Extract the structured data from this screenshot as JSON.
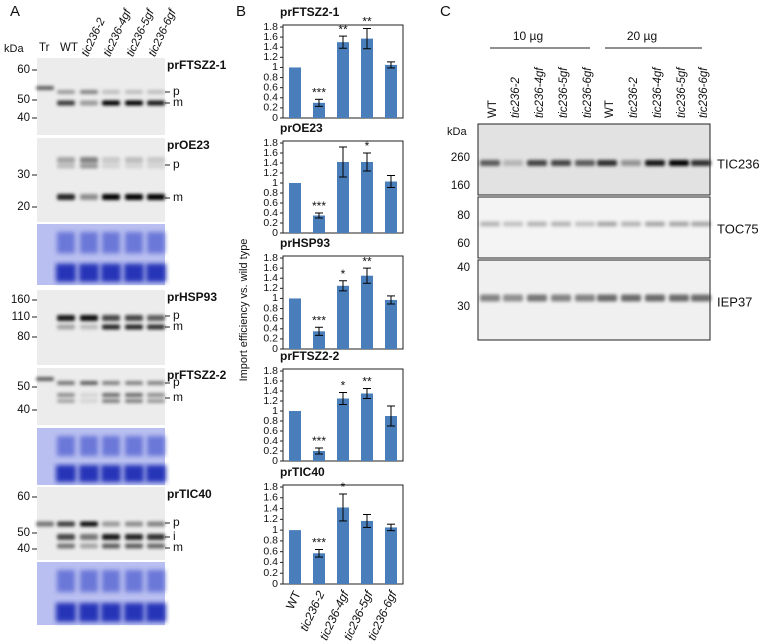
{
  "panel_a": {
    "label": "A",
    "kda": "kDa",
    "lanes": [
      "Tr",
      "WT",
      "tic236-2",
      "tic236-4gf",
      "tic236-5gf",
      "tic236-6gf"
    ],
    "blots": [
      {
        "title": "prFTSZ2-1",
        "markers": [
          60,
          50,
          40
        ],
        "bands": [
          "p",
          "m"
        ]
      },
      {
        "title": "prOE23",
        "markers": [
          30,
          20
        ],
        "bands": [
          "p",
          "m"
        ]
      },
      {
        "title": "prHSP93",
        "markers": [
          160,
          110,
          80
        ],
        "bands": [
          "p",
          "m"
        ]
      },
      {
        "title": "prFTSZ2-2",
        "markers": [
          50,
          40
        ],
        "bands": [
          "p",
          "m"
        ]
      },
      {
        "title": "prTIC40",
        "markers": [
          60,
          50,
          40
        ],
        "bands": [
          "p",
          "i",
          "m"
        ]
      }
    ]
  },
  "panel_b": {
    "label": "B",
    "y_label": "Import efficiency vs. wild type"
  },
  "chart_data": [
    {
      "type": "bar",
      "title": "prFTSZ2-1",
      "values": [
        1,
        0.3,
        1.5,
        1.57,
        1.05
      ],
      "errors": [
        null,
        0.07,
        0.12,
        0.2,
        0.06
      ],
      "annotations": [
        null,
        "***",
        "**",
        "**",
        null
      ],
      "color": "#4a7ebb",
      "ylim": [
        0,
        1.8
      ],
      "yticks": [
        0,
        0.2,
        0.4,
        0.6,
        0.8,
        1,
        1.2,
        1.4,
        1.6,
        1.8
      ]
    },
    {
      "type": "bar",
      "title": "prOE23",
      "values": [
        1,
        0.35,
        1.42,
        1.42,
        1.03
      ],
      "errors": [
        null,
        0.05,
        0.3,
        0.18,
        0.12
      ],
      "annotations": [
        null,
        "***",
        null,
        "*",
        null
      ],
      "color": "#4a7ebb",
      "ylim": [
        0,
        1.8
      ],
      "yticks": [
        0,
        0.2,
        0.4,
        0.6,
        0.8,
        1,
        1.2,
        1.4,
        1.6,
        1.8
      ]
    },
    {
      "type": "bar",
      "title": "prHSP93",
      "values": [
        1,
        0.35,
        1.25,
        1.45,
        0.97
      ],
      "errors": [
        null,
        0.08,
        0.1,
        0.15,
        0.08
      ],
      "annotations": [
        null,
        "***",
        "*",
        "**",
        null
      ],
      "color": "#4a7ebb",
      "ylim": [
        0,
        1.8
      ],
      "yticks": [
        0,
        0.2,
        0.4,
        0.6,
        0.8,
        1,
        1.2,
        1.4,
        1.6,
        1.8
      ]
    },
    {
      "type": "bar",
      "title": "prFTSZ2-2",
      "values": [
        1,
        0.2,
        1.25,
        1.35,
        0.9
      ],
      "errors": [
        null,
        0.06,
        0.12,
        0.1,
        0.2
      ],
      "annotations": [
        null,
        "***",
        "*",
        "**",
        null
      ],
      "color": "#4a7ebb",
      "ylim": [
        0,
        1.8
      ],
      "yticks": [
        0,
        0.2,
        0.4,
        0.6,
        0.8,
        1,
        1.2,
        1.4,
        1.6,
        1.8
      ]
    },
    {
      "type": "bar",
      "title": "prTIC40",
      "categories": [
        "WT",
        "tic236-2",
        "tic236-4gf",
        "tic236-5gf",
        "tic236-6gf"
      ],
      "values": [
        1,
        0.57,
        1.42,
        1.17,
        1.05
      ],
      "errors": [
        null,
        0.07,
        0.25,
        0.12,
        0.06
      ],
      "annotations": [
        null,
        "***",
        "*",
        null,
        null
      ],
      "color": "#4a7ebb",
      "ylim": [
        0,
        1.8
      ],
      "yticks": [
        0,
        0.2,
        0.4,
        0.6,
        0.8,
        1,
        1.2,
        1.4,
        1.6,
        1.8
      ]
    }
  ],
  "panel_c": {
    "label": "C",
    "kda": "kDa",
    "groups": [
      "10 µg",
      "20 µg"
    ],
    "lanes": [
      "WT",
      "tic236-2",
      "tic236-4gf",
      "tic236-5gf",
      "tic236-6gf"
    ],
    "blots": [
      {
        "title": "TIC236",
        "markers": [
          260,
          160
        ]
      },
      {
        "title": "TOC75",
        "markers": [
          80,
          60
        ]
      },
      {
        "title": "IEP37",
        "markers": [
          40,
          30
        ]
      }
    ]
  }
}
